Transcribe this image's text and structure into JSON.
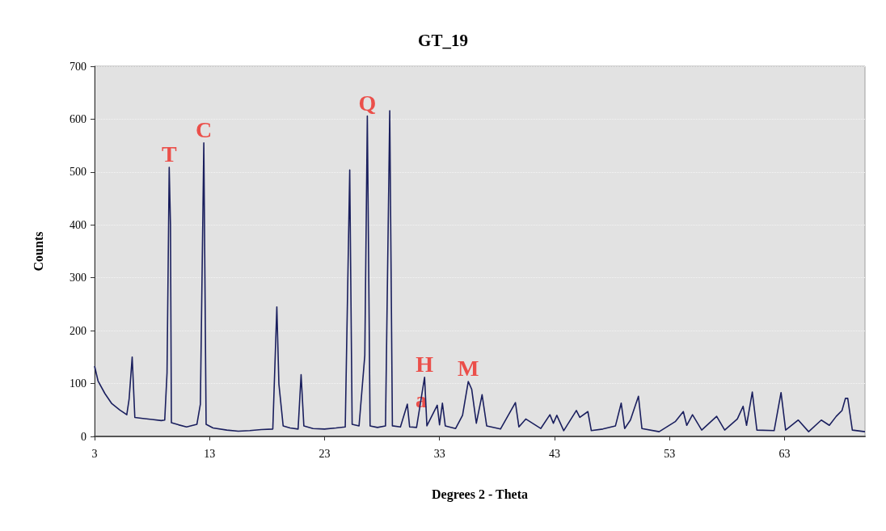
{
  "chart_data": {
    "type": "line",
    "title": "GT_19",
    "xlabel": "Degrees 2 - Theta",
    "ylabel": "Counts",
    "xlim": [
      3,
      70
    ],
    "xticks": [
      3,
      13,
      23,
      33,
      43,
      53,
      63
    ],
    "ylim": [
      0,
      700
    ],
    "yticks": [
      0,
      100,
      200,
      300,
      400,
      500,
      600,
      700
    ],
    "grid": "y",
    "marker": "none",
    "line_style": "solid",
    "annotations": [
      {
        "text": "T",
        "x": 9.49,
        "y": 509
      },
      {
        "text": "C",
        "x": 12.5,
        "y": 555
      },
      {
        "text": "Q",
        "x": 26.72,
        "y": 606
      },
      {
        "text": "H",
        "x": 31.7,
        "y": 112
      },
      {
        "text": "a",
        "x": 31.4,
        "y": 45
      },
      {
        "text": "M",
        "x": 35.5,
        "y": 104
      }
    ],
    "series": [
      {
        "color": "#1a1f5e",
        "x": [
          3,
          3.3,
          3.9,
          4.5,
          5.2,
          5.8,
          6.0,
          6.27,
          6.5,
          7.2,
          8.0,
          8.8,
          9.1,
          9.3,
          9.49,
          9.6,
          9.68,
          10.3,
          11.0,
          11.9,
          12.2,
          12.5,
          12.7,
          13.3,
          14.5,
          15.5,
          16.5,
          17.5,
          18.5,
          18.85,
          19.03,
          19.4,
          20.0,
          20.7,
          20.96,
          21.2,
          22.0,
          23.0,
          24.0,
          24.8,
          25.19,
          25.4,
          26.0,
          26.5,
          26.72,
          26.96,
          27.6,
          28.3,
          28.67,
          28.9,
          29.6,
          30.2,
          30.4,
          31.0,
          31.7,
          31.9,
          32.8,
          33.0,
          33.25,
          33.5,
          34.4,
          35.0,
          35.5,
          35.8,
          36.2,
          36.7,
          37.1,
          38.3,
          39.6,
          39.9,
          40.5,
          41.8,
          42.6,
          42.9,
          43.2,
          43.8,
          44.9,
          45.2,
          45.9,
          46.2,
          47.2,
          48.3,
          48.8,
          49.1,
          49.6,
          50.3,
          50.6,
          52.1,
          53.5,
          54.2,
          54.5,
          55.0,
          55.8,
          57.1,
          57.8,
          58.9,
          59.4,
          59.7,
          60.2,
          60.6,
          62.1,
          62.7,
          63.1,
          64.2,
          65.1,
          66.2,
          66.9,
          67.5,
          68.0,
          68.3,
          68.5,
          68.9,
          70
        ],
        "values": [
          133,
          105,
          81,
          62,
          50,
          41,
          70,
          150,
          36,
          34,
          32,
          30,
          31,
          120,
          509,
          400,
          26,
          22,
          18,
          23,
          61,
          555,
          23,
          16,
          12,
          10,
          11,
          13,
          14,
          245,
          99,
          20,
          16,
          14,
          117,
          20,
          15,
          14,
          16,
          18,
          504,
          23,
          20,
          153,
          606,
          20,
          17,
          20,
          616,
          20,
          18,
          61,
          18,
          17,
          112,
          20,
          59,
          22,
          63,
          20,
          15,
          40,
          104,
          89,
          25,
          79,
          20,
          14,
          64,
          18,
          33,
          15,
          41,
          25,
          40,
          11,
          49,
          36,
          47,
          11,
          14,
          20,
          63,
          15,
          31,
          76,
          15,
          9,
          28,
          47,
          21,
          41,
          12,
          38,
          12,
          33,
          57,
          21,
          84,
          12,
          11,
          83,
          12,
          31,
          9,
          31,
          21,
          38,
          49,
          72,
          72,
          12,
          9
        ]
      }
    ]
  }
}
